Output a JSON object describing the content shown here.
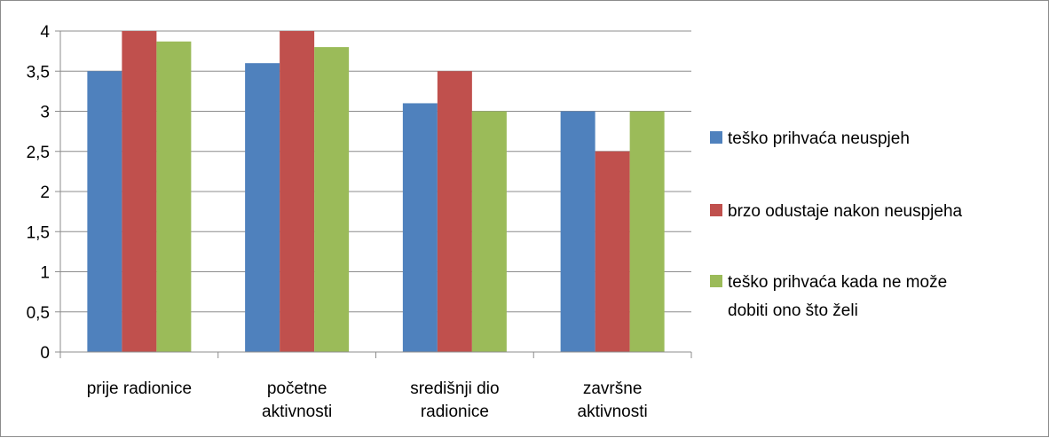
{
  "chart_data": {
    "type": "bar",
    "title": "",
    "xlabel": "",
    "ylabel": "",
    "ylim": [
      0,
      4
    ],
    "y_ticks": [
      "0",
      "0,5",
      "1",
      "1,5",
      "2",
      "2,5",
      "3",
      "3,5",
      "4"
    ],
    "grid": true,
    "legend_position": "right",
    "categories": [
      [
        "prije radionice"
      ],
      [
        "početne",
        "aktivnosti"
      ],
      [
        "središnji dio",
        "radionice"
      ],
      [
        "završne",
        "aktivnosti"
      ]
    ],
    "series": [
      {
        "name": [
          "teško prihvaća neuspjeh"
        ],
        "color": "#4f81bd",
        "values": [
          3.5,
          3.6,
          3.1,
          3.0
        ]
      },
      {
        "name": [
          "brzo odustaje nakon neuspjeha"
        ],
        "color": "#c0504d",
        "values": [
          4.0,
          4.0,
          3.5,
          2.5
        ]
      },
      {
        "name": [
          "teško prihvaća kada ne može",
          "dobiti ono što želi"
        ],
        "color": "#9bbb59",
        "values": [
          3.87,
          3.8,
          3.0,
          3.0
        ]
      }
    ]
  }
}
